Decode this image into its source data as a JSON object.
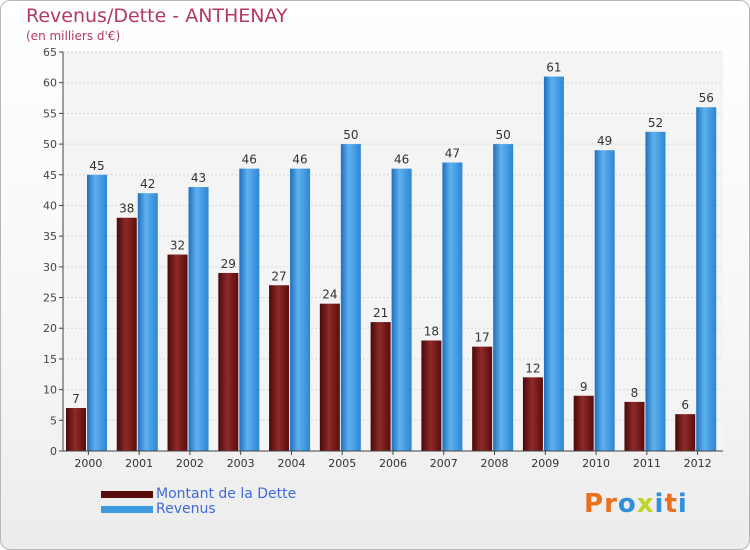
{
  "header": {
    "title": "Revenus/Dette - ANTHENAY",
    "subtitle": "(en milliers d'€)"
  },
  "chart_data": {
    "type": "bar",
    "title": "Revenus/Dette - ANTHENAY",
    "subtitle": "(en milliers d'€)",
    "categories": [
      "2000",
      "2001",
      "2002",
      "2003",
      "2004",
      "2005",
      "2006",
      "2007",
      "2008",
      "2009",
      "2010",
      "2011",
      "2012"
    ],
    "series": [
      {
        "name": "Montant de la Dette",
        "color": "#7a1a1a",
        "values": [
          7,
          38,
          32,
          29,
          27,
          24,
          21,
          18,
          17,
          12,
          9,
          8,
          6
        ]
      },
      {
        "name": "Revenus",
        "color": "#3d9be0",
        "values": [
          45,
          42,
          43,
          46,
          46,
          50,
          46,
          47,
          50,
          61,
          49,
          52,
          56
        ]
      }
    ],
    "ylim": [
      0,
      65
    ],
    "yticks": [
      0,
      5,
      10,
      15,
      20,
      25,
      30,
      35,
      40,
      45,
      50,
      55,
      60,
      65
    ],
    "grid": true,
    "legend_position": "bottom-left",
    "data_labels": true
  },
  "legend": {
    "items": [
      {
        "label": "Montant de la Dette",
        "color": "#5a0a0a"
      },
      {
        "label": "Revenus",
        "color": "#3d9be0"
      }
    ]
  },
  "logo": {
    "letters": [
      {
        "char": "P",
        "color": "#e8701f"
      },
      {
        "char": "r",
        "color": "#e8701f"
      },
      {
        "char": "o",
        "color": "#2f8fd8"
      },
      {
        "char": "x",
        "color": "#c2d42a"
      },
      {
        "char": "i",
        "color": "#2f8fd8"
      },
      {
        "char": "t",
        "color": "#e8701f"
      },
      {
        "char": "i",
        "color": "#2f8fd8"
      }
    ]
  }
}
